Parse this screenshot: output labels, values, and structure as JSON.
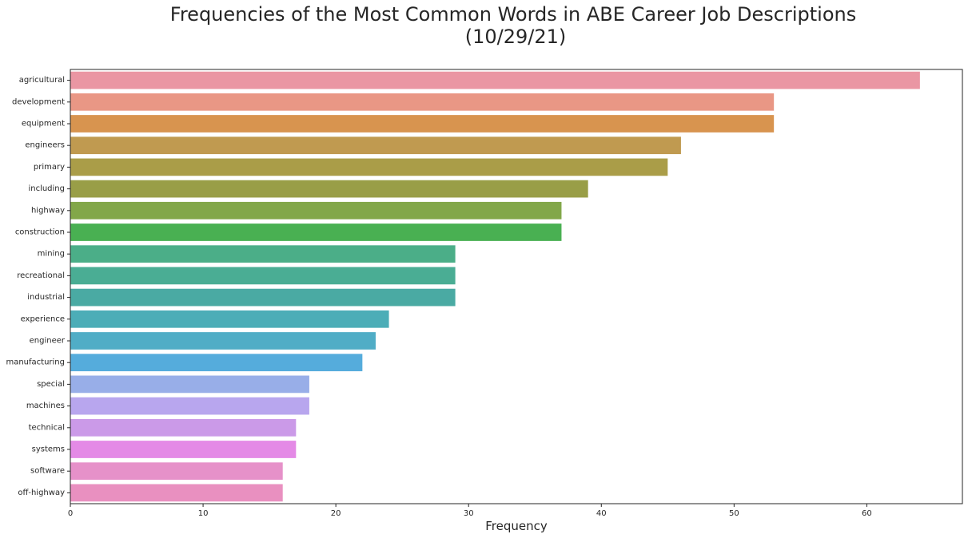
{
  "chart_data": {
    "type": "bar",
    "orientation": "horizontal",
    "title": [
      "Frequencies of the Most Common Words in ABE Career Job Descriptions",
      "(10/29/21)"
    ],
    "xlabel": "Frequency",
    "ylabel": "",
    "xlim": [
      0,
      67.2
    ],
    "xticks": [
      0,
      10,
      20,
      30,
      40,
      50,
      60
    ],
    "grid": false,
    "legend": "none",
    "categories": [
      "agricultural",
      "development",
      "equipment",
      "engineers",
      "primary",
      "including",
      "highway",
      "construction",
      "mining",
      "recreational",
      "industrial",
      "experience",
      "engineer",
      "manufacturing",
      "special",
      "machines",
      "technical",
      "systems",
      "software",
      "off-highway"
    ],
    "values": [
      64,
      53,
      53,
      46,
      45,
      39,
      37,
      37,
      29,
      29,
      29,
      24,
      23,
      22,
      18,
      18,
      17,
      17,
      16,
      16
    ],
    "colors": [
      "#ea96a3",
      "#e99785",
      "#d8944f",
      "#c09a50",
      "#aa9d48",
      "#999e47",
      "#82a749",
      "#49b052",
      "#4bae88",
      "#4aad94",
      "#4aaaa3",
      "#4cadb7",
      "#50adc6",
      "#55acdc",
      "#98aee8",
      "#b8a6ee",
      "#cb9ae8",
      "#e48ae6",
      "#e691c9",
      "#e990c0"
    ]
  }
}
